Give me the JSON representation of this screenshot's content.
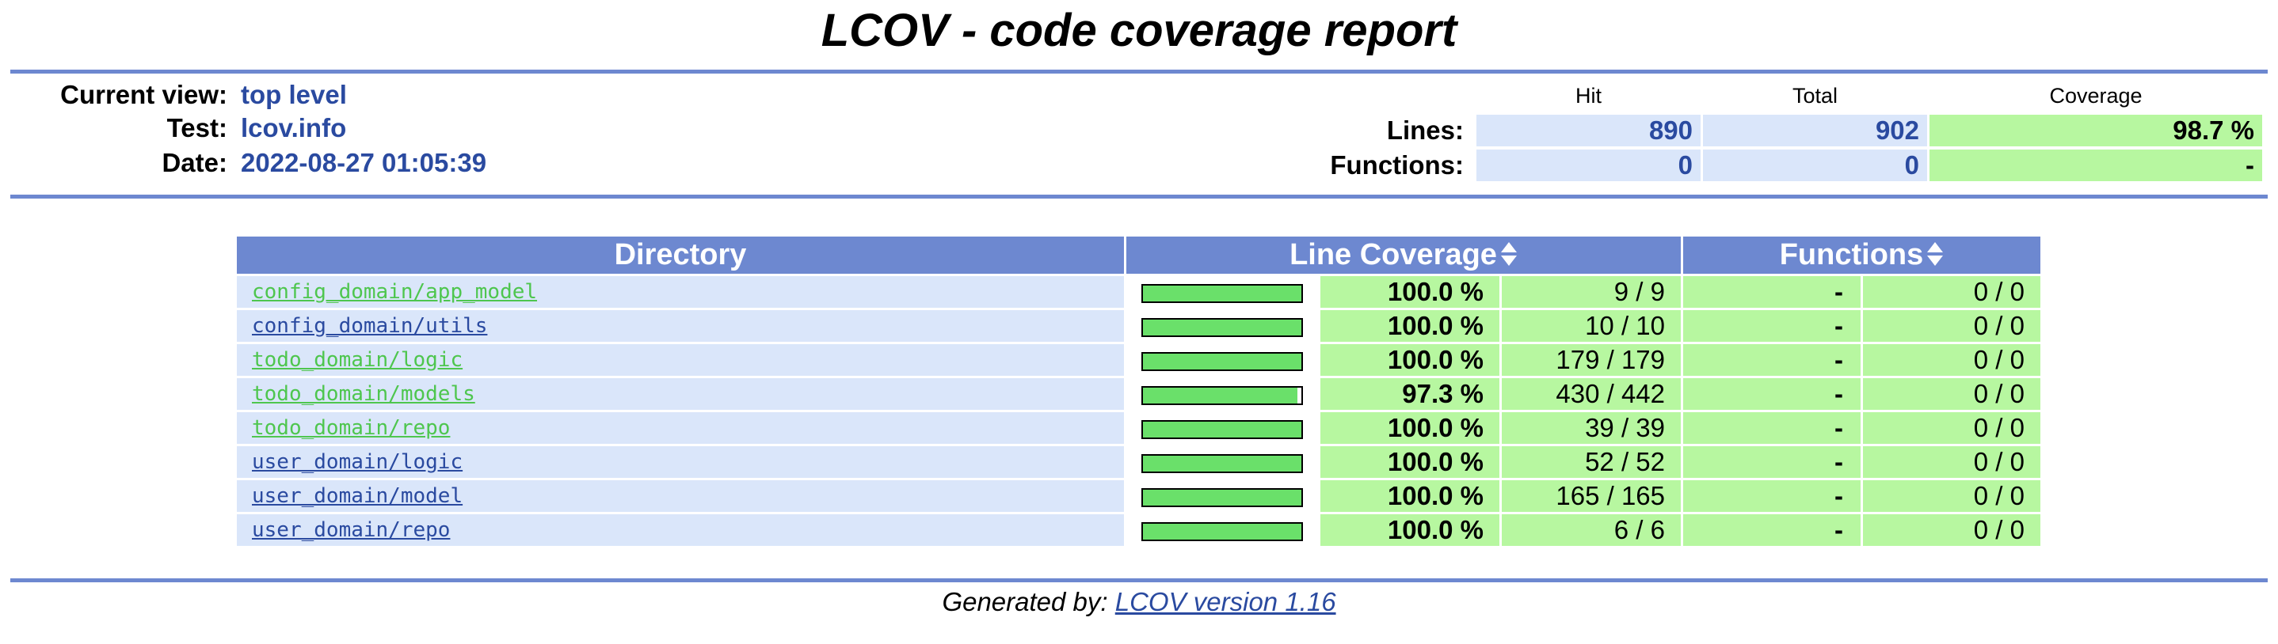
{
  "title": "LCOV - code coverage report",
  "header": {
    "current_view_label": "Current view:",
    "current_view_value": "top level",
    "test_label": "Test:",
    "test_value": "lcov.info",
    "date_label": "Date:",
    "date_value": "2022-08-27 01:05:39",
    "col_hit": "Hit",
    "col_total": "Total",
    "col_coverage": "Coverage",
    "lines_label": "Lines:",
    "lines_hit": "890",
    "lines_total": "902",
    "lines_coverage": "98.7 %",
    "functions_label": "Functions:",
    "functions_hit": "0",
    "functions_total": "0",
    "functions_coverage": "-"
  },
  "table": {
    "col_directory": "Directory",
    "col_line_coverage": "Line Coverage",
    "col_functions": "Functions",
    "rows": [
      {
        "name": "config_domain/app_model",
        "link_color": "green",
        "coverage_fraction": 1.0,
        "line_pct": "100.0 %",
        "line_count": "9 / 9",
        "fn_pct": "-",
        "fn_count": "0 / 0"
      },
      {
        "name": "config_domain/utils",
        "link_color": "blue",
        "coverage_fraction": 1.0,
        "line_pct": "100.0 %",
        "line_count": "10 / 10",
        "fn_pct": "-",
        "fn_count": "0 / 0"
      },
      {
        "name": "todo_domain/logic",
        "link_color": "green",
        "coverage_fraction": 1.0,
        "line_pct": "100.0 %",
        "line_count": "179 / 179",
        "fn_pct": "-",
        "fn_count": "0 / 0"
      },
      {
        "name": "todo_domain/models",
        "link_color": "green",
        "coverage_fraction": 0.973,
        "line_pct": "97.3 %",
        "line_count": "430 / 442",
        "fn_pct": "-",
        "fn_count": "0 / 0"
      },
      {
        "name": "todo_domain/repo",
        "link_color": "green",
        "coverage_fraction": 1.0,
        "line_pct": "100.0 %",
        "line_count": "39 / 39",
        "fn_pct": "-",
        "fn_count": "0 / 0"
      },
      {
        "name": "user_domain/logic",
        "link_color": "blue",
        "coverage_fraction": 1.0,
        "line_pct": "100.0 %",
        "line_count": "52 / 52",
        "fn_pct": "-",
        "fn_count": "0 / 0"
      },
      {
        "name": "user_domain/model",
        "link_color": "blue",
        "coverage_fraction": 1.0,
        "line_pct": "100.0 %",
        "line_count": "165 / 165",
        "fn_pct": "-",
        "fn_count": "0 / 0"
      },
      {
        "name": "user_domain/repo",
        "link_color": "blue",
        "coverage_fraction": 1.0,
        "line_pct": "100.0 %",
        "line_count": "6 / 6",
        "fn_pct": "-",
        "fn_count": "0 / 0"
      }
    ]
  },
  "footer": {
    "prefix": "Generated by: ",
    "link_text": "LCOV version 1.16"
  },
  "colors": {
    "ruler": "#6d88d0",
    "header_cell_bg": "#dae6fa",
    "coverage_high_bg": "#b7f7a0",
    "bar_fill": "#6ae06a",
    "link_blue": "#2a4aa0",
    "link_green": "#4ec64e"
  },
  "icons": {
    "sort": "sort-updown-icon"
  }
}
